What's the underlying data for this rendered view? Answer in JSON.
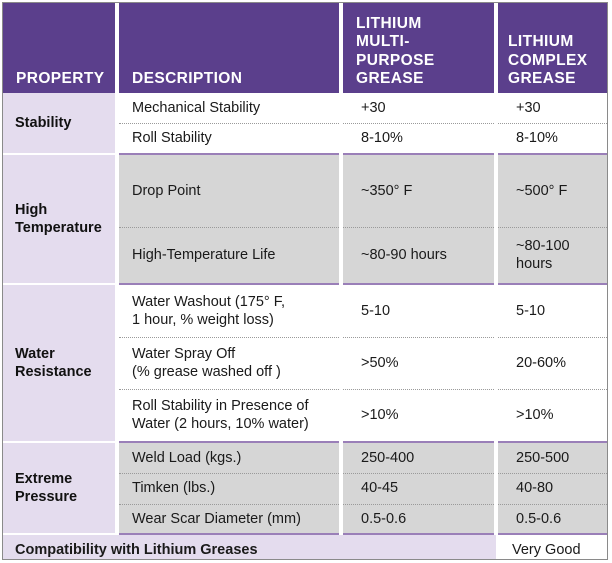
{
  "headers": {
    "property": "PROPERTY",
    "description": "DESCRIPTION",
    "multi": [
      "LITHIUM",
      "MULTI-PURPOSE",
      "GREASE"
    ],
    "complex": [
      "LITHIUM",
      "COMPLEX",
      "GREASE"
    ]
  },
  "groups": [
    {
      "property": [
        "Stability"
      ],
      "rows": [
        {
          "description": [
            "Mechanical Stability"
          ],
          "multi": [
            "+30"
          ],
          "complex": [
            "+30"
          ]
        },
        {
          "description": [
            "Roll Stability"
          ],
          "multi": [
            "8-10%"
          ],
          "complex": [
            "8-10%"
          ]
        }
      ]
    },
    {
      "property": [
        "High",
        "Temperature"
      ],
      "rows": [
        {
          "description": [
            "Drop Point"
          ],
          "multi": [
            "~350° F"
          ],
          "complex": [
            "~500° F"
          ]
        },
        {
          "description": [
            "High-Temperature Life"
          ],
          "multi": [
            "~80-90 hours"
          ],
          "complex": [
            "~80-100",
            "hours"
          ]
        }
      ]
    },
    {
      "property": [
        "Water",
        "Resistance"
      ],
      "rows": [
        {
          "description": [
            "Water Washout  (175° F,",
            "1 hour, % weight loss)"
          ],
          "multi": [
            "5-10"
          ],
          "complex": [
            "5-10"
          ]
        },
        {
          "description": [
            "Water Spray Off",
            "(% grease washed off )"
          ],
          "multi": [
            ">50%"
          ],
          "complex": [
            "20-60%"
          ]
        },
        {
          "description": [
            "Roll Stability in Presence of",
            "Water (2 hours, 10% water)"
          ],
          "multi": [
            ">10%"
          ],
          "complex": [
            ">10%"
          ]
        }
      ]
    },
    {
      "property": [
        "Extreme",
        "Pressure"
      ],
      "rows": [
        {
          "description": [
            "Weld Load (kgs.)"
          ],
          "multi": [
            "250-400"
          ],
          "complex": [
            "250-500"
          ]
        },
        {
          "description": [
            "Timken (lbs.)"
          ],
          "multi": [
            "40-45"
          ],
          "complex": [
            "40-80"
          ]
        },
        {
          "description": [
            "Wear Scar Diameter (mm)"
          ],
          "multi": [
            "0.5-0.6"
          ],
          "complex": [
            "0.5-0.6"
          ]
        }
      ]
    }
  ],
  "compatibility": {
    "label": "Compatibility with Lithium Greases",
    "value": "Very Good"
  },
  "colors": {
    "header_bg": "#5b3f8c",
    "property_bg": "#e4dcee",
    "gray_row_bg": "#d6d6d6"
  }
}
